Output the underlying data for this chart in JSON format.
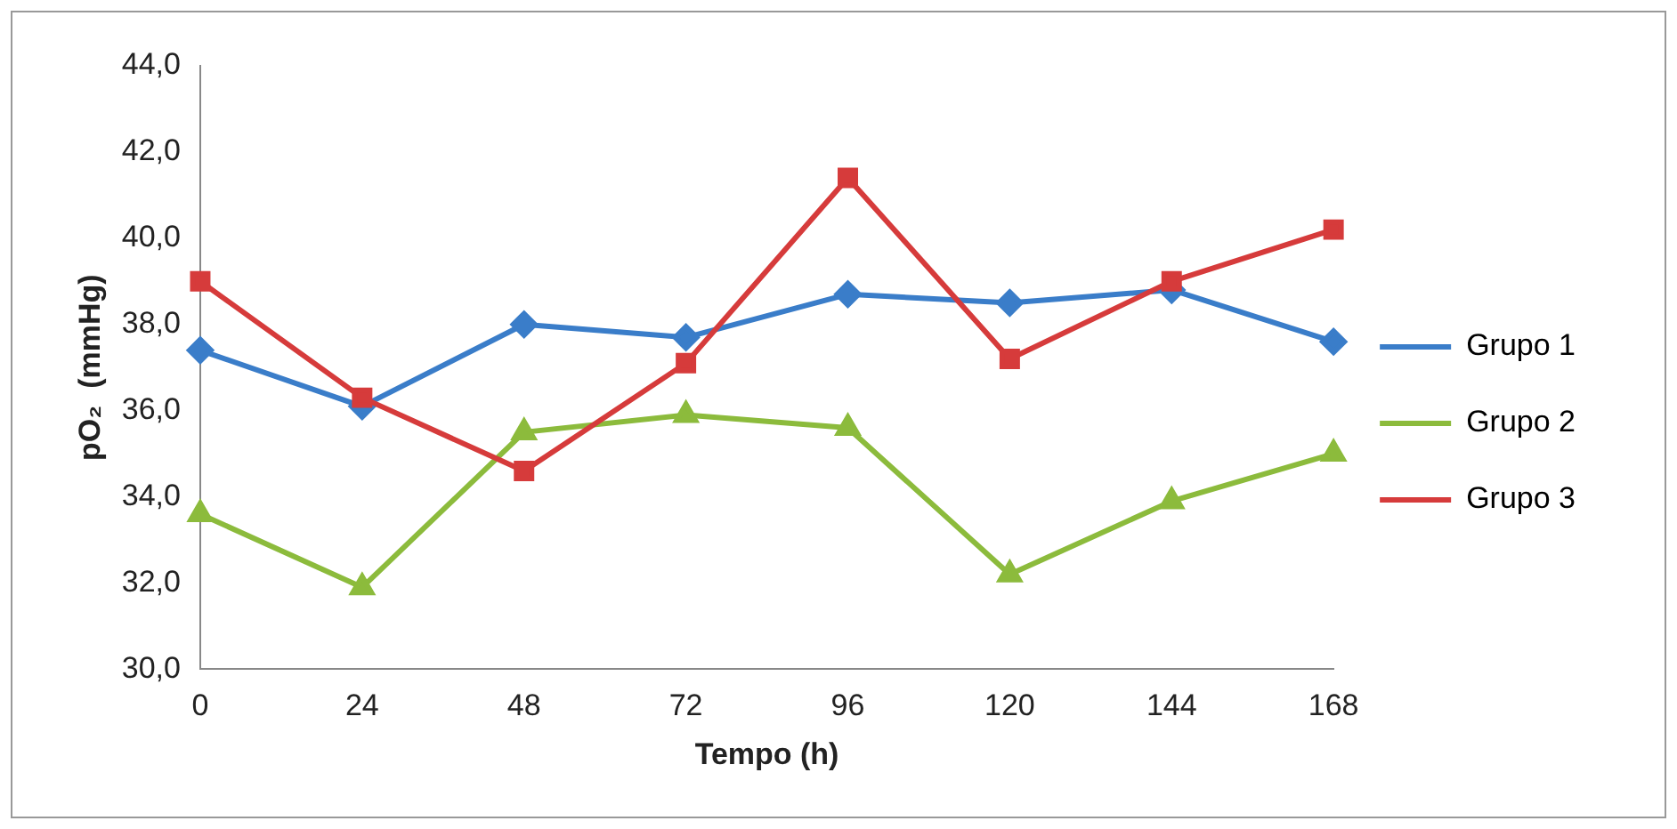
{
  "chart_data": {
    "type": "line",
    "xlabel": "Tempo (h)",
    "ylabel": "pO₂  (mmHg)",
    "categories": [
      "0",
      "24",
      "48",
      "72",
      "96",
      "120",
      "144",
      "168"
    ],
    "series": [
      {
        "name": "Grupo 1",
        "color": "#3a7dc9",
        "marker": "diamond",
        "values": [
          37.4,
          36.1,
          38.0,
          37.7,
          38.7,
          38.5,
          38.8,
          37.6
        ]
      },
      {
        "name": "Grupo 2",
        "color": "#8cbb3c",
        "marker": "triangle",
        "values": [
          33.6,
          31.9,
          35.5,
          35.9,
          35.6,
          32.2,
          33.9,
          35.0
        ]
      },
      {
        "name": "Grupo 3",
        "color": "#d63b3b",
        "marker": "square",
        "values": [
          39.0,
          36.3,
          34.6,
          37.1,
          41.4,
          37.2,
          39.0,
          40.2
        ]
      }
    ],
    "ylim": [
      30,
      44
    ],
    "yticks": [
      {
        "value": 30,
        "label": "30,0"
      },
      {
        "value": 32,
        "label": "32,0"
      },
      {
        "value": 34,
        "label": "34,0"
      },
      {
        "value": 36,
        "label": "36,0"
      },
      {
        "value": 38,
        "label": "38,0"
      },
      {
        "value": 40,
        "label": "40,0"
      },
      {
        "value": 42,
        "label": "42,0"
      },
      {
        "value": 44,
        "label": "44,0"
      }
    ],
    "grid": false,
    "legend": "right",
    "line_style": "solid"
  }
}
